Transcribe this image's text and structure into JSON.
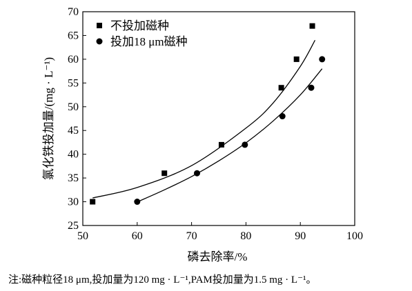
{
  "chart_data": {
    "type": "scatter",
    "xlabel": "磷去除率/%",
    "ylabel": "氯化铁投加量/(mg · L⁻¹)",
    "xlim": [
      50,
      100
    ],
    "ylim": [
      25,
      70
    ],
    "xticks": [
      50,
      60,
      70,
      80,
      90,
      100
    ],
    "yticks": [
      25,
      30,
      35,
      40,
      45,
      50,
      55,
      60,
      65,
      70
    ],
    "grid": false,
    "legend_position": "top-left",
    "series": [
      {
        "name": "不投加磁种",
        "marker": "square",
        "points": [
          {
            "x": 51.8,
            "y": 30
          },
          {
            "x": 65.0,
            "y": 36
          },
          {
            "x": 75.5,
            "y": 42
          },
          {
            "x": 86.5,
            "y": 54
          },
          {
            "x": 89.3,
            "y": 60
          },
          {
            "x": 92.2,
            "y": 67
          }
        ],
        "fit_curve": [
          {
            "x": 51.8,
            "y": 30.8
          },
          {
            "x": 60,
            "y": 33.0
          },
          {
            "x": 70,
            "y": 37.6
          },
          {
            "x": 80,
            "y": 45.5
          },
          {
            "x": 85,
            "y": 50.8
          },
          {
            "x": 90,
            "y": 58.5
          },
          {
            "x": 92.7,
            "y": 64.0
          }
        ]
      },
      {
        "name": "投加18 μm磁种",
        "marker": "circle",
        "points": [
          {
            "x": 60.0,
            "y": 30
          },
          {
            "x": 71.0,
            "y": 36
          },
          {
            "x": 79.8,
            "y": 42
          },
          {
            "x": 86.7,
            "y": 48
          },
          {
            "x": 92.0,
            "y": 54
          },
          {
            "x": 94.0,
            "y": 60
          }
        ],
        "fit_curve": [
          {
            "x": 60.3,
            "y": 30.1
          },
          {
            "x": 65,
            "y": 32.5
          },
          {
            "x": 70,
            "y": 35.3
          },
          {
            "x": 75,
            "y": 38.6
          },
          {
            "x": 80,
            "y": 42.4
          },
          {
            "x": 85,
            "y": 47.0
          },
          {
            "x": 90,
            "y": 52.5
          },
          {
            "x": 94.0,
            "y": 58.0
          }
        ]
      }
    ]
  },
  "note": "注:磁种粒径18 μm,投加量为120 mg · L⁻¹,PAM投加量为1.5 mg · L⁻¹。"
}
